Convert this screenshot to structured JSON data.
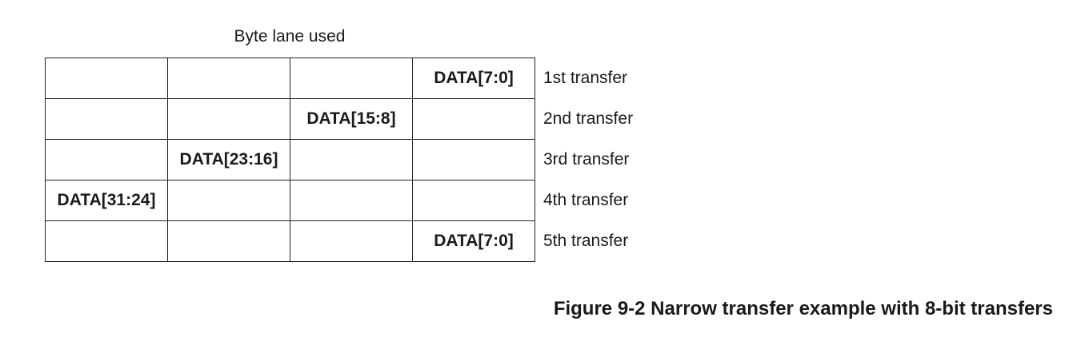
{
  "heading": "Byte lane used",
  "rows": [
    {
      "cells": [
        "",
        "",
        "",
        "DATA[7:0]"
      ],
      "label": "1st transfer"
    },
    {
      "cells": [
        "",
        "",
        "DATA[15:8]",
        ""
      ],
      "label": "2nd transfer"
    },
    {
      "cells": [
        "",
        "DATA[23:16]",
        "",
        ""
      ],
      "label": "3rd transfer"
    },
    {
      "cells": [
        "DATA[31:24]",
        "",
        "",
        ""
      ],
      "label": "4th transfer"
    },
    {
      "cells": [
        "",
        "",
        "",
        "DATA[7:0]"
      ],
      "label": "5th transfer"
    }
  ],
  "caption": "Figure 9-2 Narrow transfer example with 8-bit transfers"
}
